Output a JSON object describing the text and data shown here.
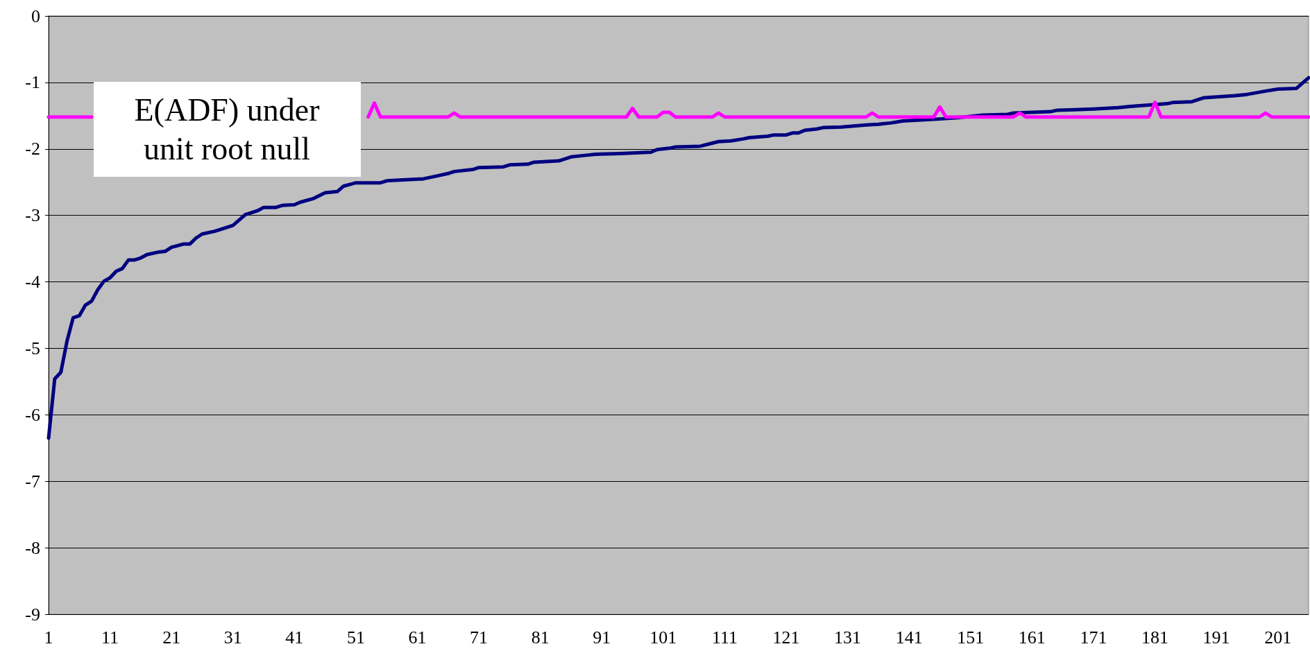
{
  "chart_data": {
    "type": "line",
    "xlim": [
      1,
      206
    ],
    "xticks": [
      1,
      11,
      21,
      31,
      41,
      51,
      61,
      71,
      81,
      91,
      101,
      111,
      121,
      131,
      141,
      151,
      161,
      171,
      181,
      191,
      201
    ],
    "ylim": [
      -9,
      0
    ],
    "yticks": [
      -9,
      -8,
      -7,
      -6,
      -5,
      -4,
      -3,
      -2,
      -1,
      0
    ],
    "grid": "y",
    "marker": "none",
    "series": [
      {
        "color": "#000080",
        "x": [
          1,
          2,
          3,
          4,
          5,
          6,
          7,
          8,
          9,
          10,
          11,
          12,
          13,
          14,
          15,
          16,
          17,
          19,
          20,
          21,
          23,
          24,
          25,
          26,
          28,
          29,
          31,
          33,
          35,
          36,
          38,
          39,
          41,
          42,
          44,
          46,
          48,
          49,
          51,
          55,
          56,
          58,
          62,
          64,
          66,
          67,
          70,
          71,
          75,
          76,
          79,
          80,
          84,
          86,
          88,
          90,
          94,
          99,
          100,
          102,
          103,
          107,
          110,
          112,
          114,
          115,
          118,
          119,
          121,
          122,
          123,
          124,
          126,
          127,
          130,
          134,
          136,
          138,
          140,
          144,
          146,
          149,
          153,
          157,
          158,
          164,
          165,
          168,
          171,
          175,
          177,
          180,
          183,
          184,
          187,
          189,
          194,
          196,
          199,
          201,
          204,
          206
        ],
        "values": [
          -6.35,
          -5.46,
          -5.36,
          -4.89,
          -4.54,
          -4.51,
          -4.35,
          -4.29,
          -4.12,
          -3.99,
          -3.94,
          -3.84,
          -3.8,
          -3.67,
          -3.67,
          -3.64,
          -3.59,
          -3.55,
          -3.54,
          -3.48,
          -3.43,
          -3.43,
          -3.34,
          -3.28,
          -3.24,
          -3.21,
          -3.15,
          -2.99,
          -2.93,
          -2.88,
          -2.88,
          -2.85,
          -2.84,
          -2.8,
          -2.75,
          -2.66,
          -2.64,
          -2.56,
          -2.51,
          -2.51,
          -2.48,
          -2.47,
          -2.45,
          -2.41,
          -2.37,
          -2.34,
          -2.31,
          -2.28,
          -2.27,
          -2.24,
          -2.23,
          -2.2,
          -2.18,
          -2.12,
          -2.1,
          -2.08,
          -2.07,
          -2.05,
          -2.01,
          -1.99,
          -1.97,
          -1.96,
          -1.89,
          -1.88,
          -1.85,
          -1.83,
          -1.81,
          -1.79,
          -1.79,
          -1.76,
          -1.76,
          -1.72,
          -1.7,
          -1.68,
          -1.67,
          -1.64,
          -1.63,
          -1.61,
          -1.58,
          -1.56,
          -1.55,
          -1.53,
          -1.49,
          -1.48,
          -1.46,
          -1.44,
          -1.42,
          -1.41,
          -1.4,
          -1.38,
          -1.36,
          -1.34,
          -1.32,
          -1.3,
          -1.29,
          -1.23,
          -1.2,
          -1.18,
          -1.13,
          -1.1,
          -1.09,
          -0.93
        ]
      },
      {
        "name": "E(ADF) under unit root null",
        "color": "#ff00ff",
        "x": [
          1,
          8,
          30,
          53,
          54,
          55,
          66,
          67,
          68,
          95,
          96,
          97,
          100,
          101,
          102,
          103,
          109,
          110,
          111,
          134,
          135,
          136,
          145,
          146,
          147,
          158,
          159,
          160,
          180,
          181,
          182,
          198,
          199,
          200,
          206
        ],
        "values": [
          -1.52,
          -1.52,
          null,
          -1.52,
          -1.31,
          -1.52,
          -1.52,
          -1.46,
          -1.52,
          -1.52,
          -1.39,
          -1.52,
          -1.52,
          -1.45,
          -1.45,
          -1.52,
          -1.52,
          -1.46,
          -1.52,
          -1.52,
          -1.46,
          -1.52,
          -1.52,
          -1.37,
          -1.52,
          -1.52,
          -1.46,
          -1.52,
          -1.52,
          -1.3,
          -1.52,
          -1.52,
          -1.46,
          -1.52,
          -1.52
        ]
      }
    ]
  }
}
